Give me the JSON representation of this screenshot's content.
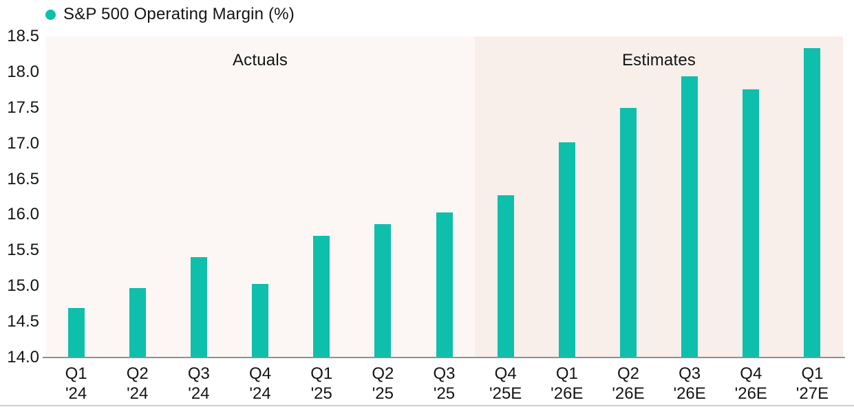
{
  "legend": {
    "label": "S&P 500 Operating Margin (%)",
    "marker_color": "#0ebfab"
  },
  "chart_data": {
    "type": "bar",
    "title": "S&P 500 Operating Margin (%)",
    "categories": [
      "Q1 '24",
      "Q2 '24",
      "Q3 '24",
      "Q4 '24",
      "Q1 '25",
      "Q2 '25",
      "Q3 '25",
      "Q4 '25E",
      "Q1 '26E",
      "Q2 '26E",
      "Q3 '26E",
      "Q4 '26E",
      "Q1 '27E"
    ],
    "category_lines": [
      [
        "Q1",
        "'24"
      ],
      [
        "Q2",
        "'24"
      ],
      [
        "Q3",
        "'24"
      ],
      [
        "Q4",
        "'24"
      ],
      [
        "Q1",
        "'25"
      ],
      [
        "Q2",
        "'25"
      ],
      [
        "Q3",
        "'25"
      ],
      [
        "Q4",
        "'25E"
      ],
      [
        "Q1",
        "'26E"
      ],
      [
        "Q2",
        "'26E"
      ],
      [
        "Q3",
        "'26E"
      ],
      [
        "Q4",
        "'26E"
      ],
      [
        "Q1",
        "'27E"
      ]
    ],
    "values": [
      14.69,
      14.97,
      15.41,
      15.03,
      15.71,
      15.87,
      16.03,
      16.27,
      17.02,
      17.5,
      17.94,
      17.76,
      18.34
    ],
    "xlabel": "",
    "ylabel": "",
    "ylim": [
      14.0,
      18.5
    ],
    "ytick_step": 0.5,
    "ytick_labels": [
      "14.0",
      "14.5",
      "15.0",
      "15.5",
      "16.0",
      "16.5",
      "17.0",
      "17.5",
      "18.0",
      "18.5"
    ],
    "bar_color": "#0ebfab",
    "grid": false,
    "legend_position": "top-left",
    "regions": [
      {
        "label": "Actuals",
        "bar_count": 7,
        "background": "#fcf7f5"
      },
      {
        "label": "Estimates",
        "bar_count": 6,
        "background": "#f8eeea"
      }
    ],
    "axis_line_color": "#8f8f8f",
    "bottom_rule_color": "#cbcbcb"
  }
}
